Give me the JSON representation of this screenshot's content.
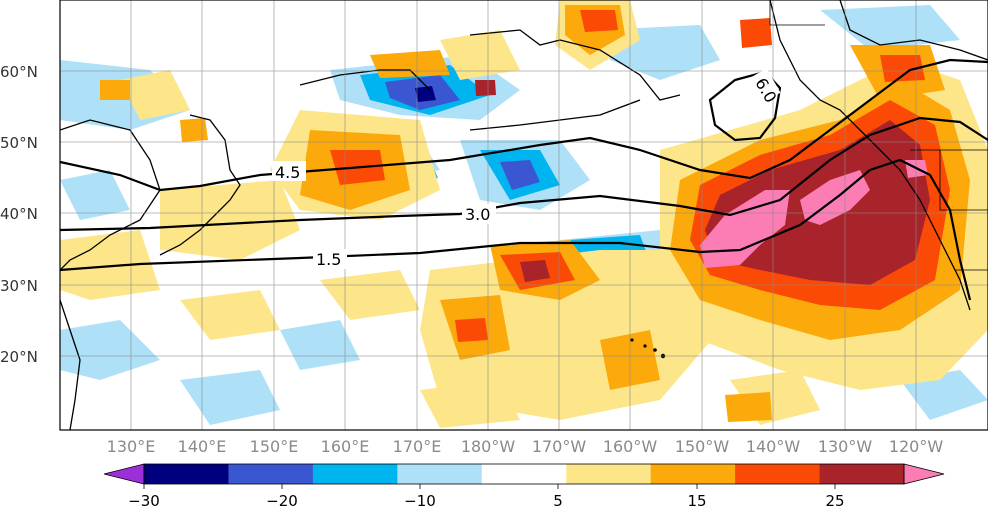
{
  "map": {
    "lat_labels": [
      "60°N",
      "50°N",
      "40°N",
      "30°N",
      "20°N"
    ],
    "lon_labels": [
      "130°E",
      "140°E",
      "150°E",
      "160°E",
      "170°E",
      "180°W",
      "170°W",
      "160°W",
      "150°W",
      "140°W",
      "130°W",
      "120°W"
    ],
    "contour_labels": [
      "6.0",
      "4.5",
      "3.0",
      "1.5"
    ]
  },
  "colorbar": {
    "tick_labels": [
      "−30",
      "−20",
      "−10",
      "5",
      "15",
      "25"
    ],
    "colors": [
      "#9b30d9",
      "#00007f",
      "#3a57d1",
      "#00b4ef",
      "#aee0f8",
      "#ffffff",
      "#fde68a",
      "#fca90b",
      "#fb4a06",
      "#a8232a",
      "#fb7db4"
    ]
  }
}
